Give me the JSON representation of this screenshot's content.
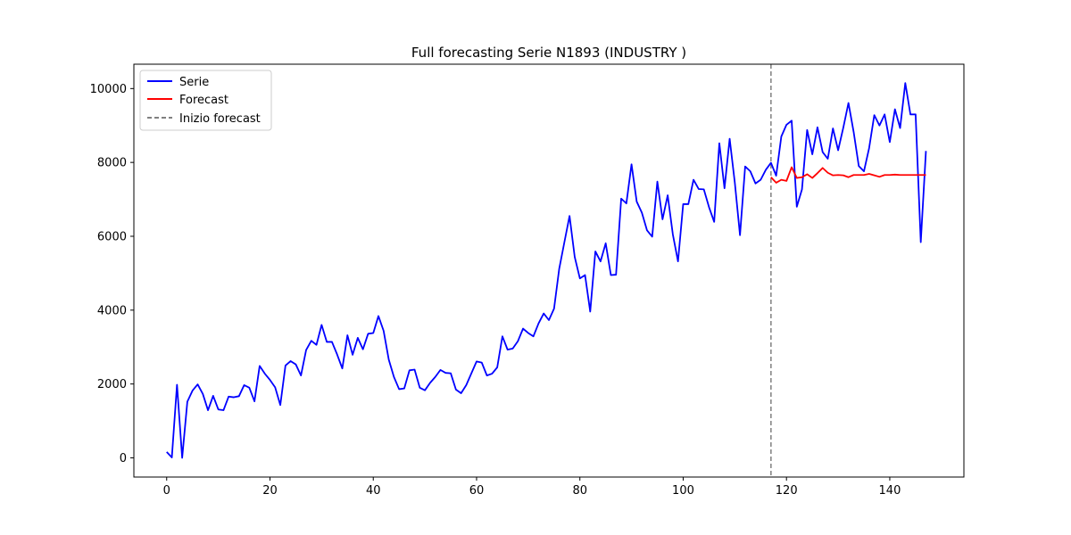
{
  "chart_data": {
    "type": "line",
    "title": "Full forecasting Serie N1893 (INDUSTRY    )",
    "xlabel": "",
    "ylabel": "",
    "xlim": [
      -6.35,
      154.35
    ],
    "ylim": [
      -520,
      10660
    ],
    "x_ticks": [
      0,
      20,
      40,
      60,
      80,
      100,
      120,
      140
    ],
    "y_ticks": [
      0,
      2000,
      4000,
      6000,
      8000,
      10000
    ],
    "grid": false,
    "legend_position": "upper-left",
    "forecast_start_x": 117,
    "series": [
      {
        "name": "Serie",
        "color": "#0000ff",
        "x_start": 0,
        "values": [
          160,
          10,
          1980,
          0,
          1520,
          1820,
          1990,
          1730,
          1290,
          1680,
          1310,
          1290,
          1660,
          1640,
          1670,
          1970,
          1900,
          1530,
          2490,
          2280,
          2110,
          1910,
          1430,
          2500,
          2620,
          2530,
          2230,
          2920,
          3170,
          3060,
          3600,
          3140,
          3140,
          2800,
          2420,
          3320,
          2790,
          3250,
          2940,
          3360,
          3380,
          3840,
          3440,
          2660,
          2190,
          1860,
          1880,
          2370,
          2390,
          1900,
          1830,
          2030,
          2190,
          2380,
          2300,
          2290,
          1850,
          1750,
          1970,
          2290,
          2610,
          2580,
          2230,
          2280,
          2450,
          3290,
          2930,
          2960,
          3160,
          3500,
          3380,
          3290,
          3640,
          3910,
          3730,
          4040,
          5120,
          5840,
          6550,
          5440,
          4860,
          4950,
          3960,
          5590,
          5320,
          5810,
          4950,
          4960,
          7020,
          6890,
          7950,
          6940,
          6640,
          6160,
          5990,
          7480,
          6460,
          7110,
          6050,
          5320,
          6870,
          6870,
          7530,
          7280,
          7270,
          6790,
          6390,
          8520,
          7300,
          8640,
          7450,
          6030,
          7890,
          7760,
          7430,
          7530,
          7800,
          7990,
          7640,
          8700,
          9020,
          9130,
          6800,
          7270,
          8880,
          8220,
          8950,
          8280,
          8100,
          8920,
          8330,
          8940,
          9610,
          8830,
          7900,
          7760,
          8390,
          9280,
          9000,
          9300,
          8550,
          9440,
          8930,
          10150,
          9300,
          9300,
          5840,
          8310
        ]
      },
      {
        "name": "Forecast",
        "color": "#ff0000",
        "x_start": 117,
        "values": [
          7600,
          7450,
          7530,
          7500,
          7870,
          7580,
          7600,
          7680,
          7580,
          7710,
          7850,
          7720,
          7650,
          7660,
          7650,
          7600,
          7660,
          7660,
          7660,
          7690,
          7650,
          7610,
          7660,
          7660,
          7670,
          7660,
          7660,
          7660,
          7660,
          7660,
          7660
        ]
      }
    ],
    "legend": [
      {
        "label": "Serie",
        "color": "#0000ff",
        "style": "solid"
      },
      {
        "label": "Forecast",
        "color": "#ff0000",
        "style": "solid"
      },
      {
        "label": "Inizio forecast",
        "color": "#808080",
        "style": "dashed"
      }
    ]
  }
}
